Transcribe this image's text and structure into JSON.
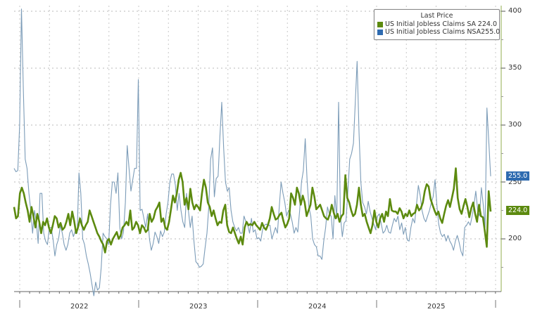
{
  "legend": {
    "title": "Last Price",
    "items": [
      {
        "name": "US Initial Jobless Claims SA",
        "value": "224.0",
        "color": "#5c8a0f"
      },
      {
        "name": "US Initial Jobless Claims NSA",
        "value": "255.0",
        "color": "#2e6bb0"
      }
    ]
  },
  "tags": {
    "nsa": "255.0",
    "sa": "224.0"
  },
  "y_ticks": [
    "400",
    "350",
    "300",
    "250",
    "200"
  ],
  "x_ticks": [
    "2022",
    "2023",
    "2024",
    "2025"
  ],
  "chart_data": {
    "type": "line",
    "title": "",
    "xlabel": "",
    "ylabel": "",
    "ylim": [
      154,
      403
    ],
    "x_tick_labels": [
      "2022",
      "2023",
      "2024",
      "2025"
    ],
    "grid": true,
    "legend_position": "top-right",
    "legend_title": "Last Price",
    "x": "weekly, mid-Dec 2021 to Jun 2025",
    "series": [
      {
        "name": "US Initial Jobless Claims SA",
        "last": 224.0,
        "color": "#5c8a0f",
        "values": [
          228,
          218,
          220,
          240,
          245,
          240,
          232,
          225,
          215,
          228,
          220,
          210,
          222,
          215,
          205,
          215,
          212,
          218,
          210,
          205,
          212,
          220,
          218,
          210,
          214,
          208,
          210,
          215,
          222,
          212,
          224,
          216,
          205,
          210,
          218,
          212,
          208,
          212,
          215,
          225,
          220,
          215,
          210,
          205,
          202,
          198,
          195,
          188,
          198,
          200,
          195,
          200,
          203,
          206,
          200,
          203,
          210,
          212,
          215,
          212,
          225,
          208,
          210,
          215,
          212,
          205,
          212,
          210,
          206,
          208,
          222,
          215,
          218,
          225,
          228,
          232,
          215,
          218,
          210,
          208,
          215,
          226,
          238,
          232,
          240,
          252,
          258,
          250,
          230,
          236,
          226,
          244,
          232,
          226,
          230,
          228,
          225,
          240,
          252,
          245,
          232,
          228,
          220,
          225,
          218,
          212,
          215,
          214,
          225,
          230,
          212,
          206,
          205,
          210,
          205,
          200,
          196,
          202,
          195,
          210,
          215,
          212,
          213,
          212,
          215,
          212,
          210,
          208,
          214,
          210,
          208,
          212,
          218,
          228,
          222,
          217,
          218,
          221,
          223,
          216,
          210,
          213,
          218,
          240,
          236,
          230,
          245,
          240,
          230,
          238,
          232,
          220,
          225,
          230,
          245,
          237,
          226,
          228,
          230,
          225,
          220,
          218,
          217,
          222,
          230,
          223,
          218,
          222,
          215,
          220,
          222,
          256,
          236,
          232,
          225,
          220,
          222,
          230,
          245,
          230,
          220,
          222,
          215,
          210,
          205,
          212,
          225,
          215,
          210,
          218,
          222,
          215,
          224,
          220,
          235,
          225,
          224,
          224,
          222,
          227,
          224,
          218,
          222,
          220,
          225,
          220,
          222,
          223,
          230,
          225,
          227,
          232,
          242,
          248,
          246,
          235,
          230,
          225,
          221,
          224,
          218,
          214,
          222,
          229,
          234,
          228,
          236,
          244,
          262,
          236,
          226,
          222,
          229,
          235,
          228,
          219,
          227,
          232,
          222,
          215,
          230,
          220,
          219,
          207,
          193,
          242,
          224
        ]
      },
      {
        "name": "US Initial Jobless Claims NSA",
        "last": 255.0,
        "color": "#2e6bb0",
        "values": [
          262,
          259,
          260,
          300,
          402,
          330,
          270,
          262,
          240,
          225,
          205,
          225,
          215,
          196,
          240,
          240,
          205,
          198,
          195,
          210,
          210,
          200,
          185,
          195,
          200,
          212,
          205,
          195,
          190,
          195,
          205,
          208,
          202,
          207,
          205,
          258,
          240,
          200,
          195,
          185,
          178,
          170,
          160,
          150,
          162,
          155,
          157,
          175,
          205,
          202,
          200,
          195,
          230,
          250,
          250,
          240,
          258,
          210,
          200,
          206,
          232,
          282,
          262,
          242,
          252,
          262,
          262,
          340,
          225,
          226,
          218,
          210,
          222,
          200,
          190,
          196,
          206,
          202,
          196,
          207,
          202,
          206,
          222,
          232,
          250,
          257,
          257,
          247,
          225,
          240,
          225,
          215,
          210,
          240,
          225,
          210,
          220,
          198,
          180,
          178,
          175,
          176,
          178,
          192,
          205,
          228,
          270,
          280,
          237,
          253,
          255,
          290,
          320,
          280,
          250,
          242,
          245,
          225,
          215,
          210,
          207,
          210,
          205,
          205,
          220,
          215,
          212,
          205,
          218,
          206,
          208,
          200,
          201,
          198,
          208,
          212,
          213,
          212,
          212,
          200,
          205,
          210,
          205,
          228,
          250,
          240,
          232,
          220,
          225,
          222,
          215,
          205,
          210,
          206,
          225,
          250,
          260,
          288,
          252,
          228,
          220,
          200,
          195,
          193,
          185,
          185,
          182,
          198,
          210,
          228,
          222,
          220,
          200,
          238,
          218,
          320,
          220,
          202,
          214,
          216,
          242,
          270,
          275,
          284,
          320,
          356,
          294,
          250,
          232,
          228,
          222,
          233,
          224,
          218,
          213,
          208,
          220,
          222,
          213,
          205,
          207,
          212,
          206,
          205,
          212,
          218,
          215,
          220,
          208,
          214,
          204,
          210,
          199,
          198,
          210,
          218,
          214,
          230,
          247,
          238,
          225,
          218,
          215,
          220,
          225,
          232,
          237,
          252,
          230,
          213,
          205,
          202,
          204,
          198,
          203,
          198,
          195,
          190,
          198,
          203,
          197,
          189,
          185,
          210,
          212,
          215,
          212,
          220,
          230,
          242,
          225,
          220,
          245,
          230,
          210,
          315,
          285,
          255
        ]
      }
    ]
  }
}
